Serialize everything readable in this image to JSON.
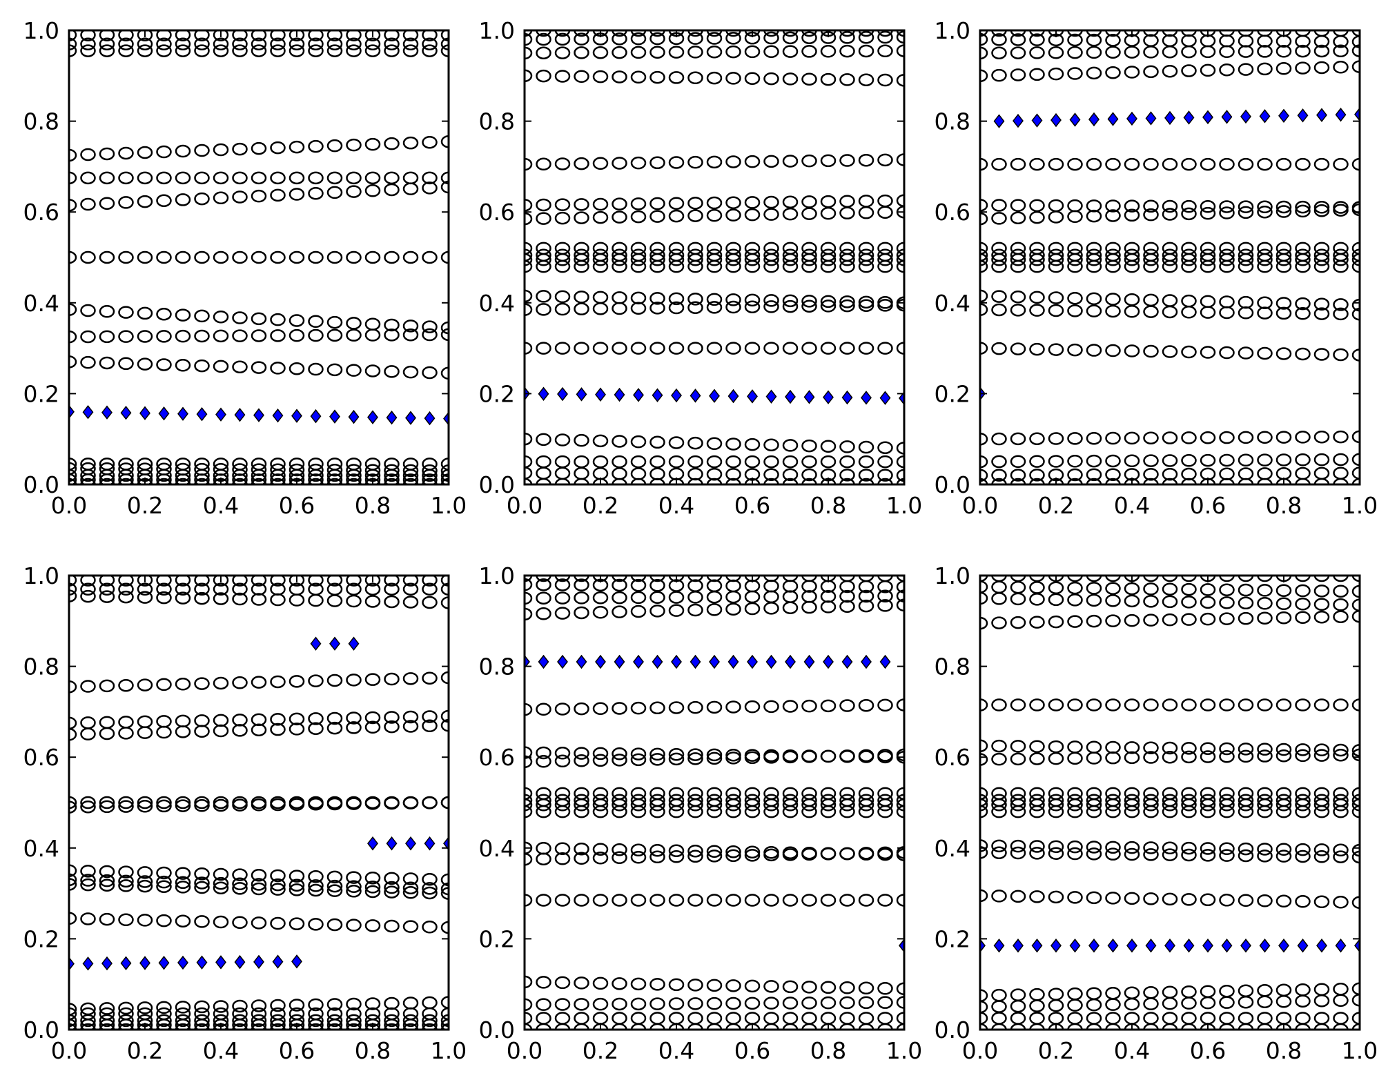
{
  "figure": {
    "colors": {
      "background": "#ffffff",
      "axes": "#000000",
      "ring": "#000000",
      "highlight": "#0000ff"
    },
    "marker_names": {
      "ring": "open-circle",
      "highlight": "blue-diamond"
    }
  },
  "chart_data": [
    {
      "type": "scatter",
      "xlim": [
        0.0,
        1.0
      ],
      "ylim": [
        0.0,
        1.0
      ],
      "xticks": [
        "0.0",
        "0.2",
        "0.4",
        "0.6",
        "0.8",
        "1.0"
      ],
      "yticks": [
        "0.0",
        "0.2",
        "0.4",
        "0.6",
        "0.8",
        "1.0"
      ],
      "x": [
        0.0,
        0.05,
        0.1,
        0.15,
        0.2,
        0.25,
        0.3,
        0.35,
        0.4,
        0.45,
        0.5,
        0.55,
        0.6,
        0.65,
        0.7,
        0.75,
        0.8,
        0.85,
        0.9,
        0.95,
        1.0
      ],
      "ring_tracks": [
        [
          0.0,
          0.0
        ],
        [
          0.01,
          0.01
        ],
        [
          0.02,
          0.02
        ],
        [
          0.035,
          0.03
        ],
        [
          0.045,
          0.045
        ],
        [
          0.955,
          0.955
        ],
        [
          0.97,
          0.97
        ],
        [
          0.99,
          0.99
        ],
        [
          0.725,
          0.755
        ],
        [
          0.675,
          0.675
        ],
        [
          0.615,
          0.655
        ],
        [
          0.5,
          0.5
        ],
        [
          0.385,
          0.345
        ],
        [
          0.325,
          0.33
        ],
        [
          0.27,
          0.245
        ]
      ],
      "highlight": [
        {
          "x_from": 0.0,
          "x_to": 1.0,
          "y_start": 0.16,
          "y_end": 0.145
        }
      ]
    },
    {
      "type": "scatter",
      "xlim": [
        0.0,
        1.0
      ],
      "ylim": [
        0.0,
        1.0
      ],
      "xticks": [
        "0.0",
        "0.2",
        "0.4",
        "0.6",
        "0.8",
        "1.0"
      ],
      "yticks": [
        "0.0",
        "0.2",
        "0.4",
        "0.6",
        "0.8",
        "1.0"
      ],
      "x": [
        0.0,
        0.05,
        0.1,
        0.15,
        0.2,
        0.25,
        0.3,
        0.35,
        0.4,
        0.45,
        0.5,
        0.55,
        0.6,
        0.65,
        0.7,
        0.75,
        0.8,
        0.85,
        0.9,
        0.95,
        1.0
      ],
      "ring_tracks": [
        [
          0.0,
          0.0
        ],
        [
          0.025,
          0.02
        ],
        [
          0.05,
          0.05
        ],
        [
          0.1,
          0.08
        ],
        [
          0.3,
          0.3
        ],
        [
          0.385,
          0.395
        ],
        [
          0.415,
          0.4
        ],
        [
          0.48,
          0.48
        ],
        [
          0.495,
          0.495
        ],
        [
          0.505,
          0.505
        ],
        [
          0.52,
          0.52
        ],
        [
          0.585,
          0.6
        ],
        [
          0.615,
          0.625
        ],
        [
          0.705,
          0.715
        ],
        [
          0.9,
          0.89
        ],
        [
          0.95,
          0.955
        ],
        [
          0.98,
          0.985
        ],
        [
          1.0,
          1.0
        ]
      ],
      "highlight": [
        {
          "x_from": 0.0,
          "x_to": 1.0,
          "y_start": 0.2,
          "y_end": 0.19
        }
      ]
    },
    {
      "type": "scatter",
      "xlim": [
        0.0,
        1.0
      ],
      "ylim": [
        0.0,
        1.0
      ],
      "xticks": [
        "0.0",
        "0.2",
        "0.4",
        "0.6",
        "0.8",
        "1.0"
      ],
      "yticks": [
        "0.0",
        "0.2",
        "0.4",
        "0.6",
        "0.8",
        "1.0"
      ],
      "x": [
        0.0,
        0.05,
        0.1,
        0.15,
        0.2,
        0.25,
        0.3,
        0.35,
        0.4,
        0.45,
        0.5,
        0.55,
        0.6,
        0.65,
        0.7,
        0.75,
        0.8,
        0.85,
        0.9,
        0.95,
        1.0
      ],
      "ring_tracks": [
        [
          0.0,
          0.0
        ],
        [
          0.02,
          0.025
        ],
        [
          0.05,
          0.055
        ],
        [
          0.1,
          0.105
        ],
        [
          0.3,
          0.285
        ],
        [
          0.385,
          0.375
        ],
        [
          0.415,
          0.395
        ],
        [
          0.48,
          0.48
        ],
        [
          0.495,
          0.495
        ],
        [
          0.505,
          0.505
        ],
        [
          0.52,
          0.52
        ],
        [
          0.585,
          0.605
        ],
        [
          0.615,
          0.61
        ],
        [
          0.705,
          0.705
        ],
        [
          0.9,
          0.92
        ],
        [
          0.95,
          0.955
        ],
        [
          0.98,
          0.975
        ],
        [
          1.0,
          1.0
        ]
      ],
      "highlight": [
        {
          "x_from": 0.0,
          "x_to": 0.0,
          "y_start": 0.2,
          "y_end": 0.2
        },
        {
          "x_from": 0.05,
          "x_to": 1.0,
          "y_start": 0.8,
          "y_end": 0.815
        }
      ]
    },
    {
      "type": "scatter",
      "xlim": [
        0.0,
        1.0
      ],
      "ylim": [
        0.0,
        1.0
      ],
      "xticks": [
        "0.0",
        "0.2",
        "0.4",
        "0.6",
        "0.8",
        "1.0"
      ],
      "yticks": [
        "0.0",
        "0.2",
        "0.4",
        "0.6",
        "0.8",
        "1.0"
      ],
      "x": [
        0.0,
        0.05,
        0.1,
        0.15,
        0.2,
        0.25,
        0.3,
        0.35,
        0.4,
        0.45,
        0.5,
        0.55,
        0.6,
        0.65,
        0.7,
        0.75,
        0.8,
        0.85,
        0.9,
        0.95,
        1.0
      ],
      "ring_tracks": [
        [
          0.0,
          0.0
        ],
        [
          0.01,
          0.01
        ],
        [
          0.02,
          0.02
        ],
        [
          0.035,
          0.035
        ],
        [
          0.045,
          0.06
        ],
        [
          0.955,
          0.94
        ],
        [
          0.97,
          0.97
        ],
        [
          0.99,
          0.99
        ],
        [
          0.755,
          0.775
        ],
        [
          0.675,
          0.69
        ],
        [
          0.65,
          0.67
        ],
        [
          0.5,
          0.5
        ],
        [
          0.49,
          0.5
        ],
        [
          0.35,
          0.33
        ],
        [
          0.33,
          0.31
        ],
        [
          0.32,
          0.3
        ],
        [
          0.245,
          0.225
        ]
      ],
      "highlight": [
        {
          "x_from": 0.0,
          "x_to": 0.6,
          "y_start": 0.145,
          "y_end": 0.15
        },
        {
          "x_from": 0.65,
          "x_to": 0.75,
          "y_start": 0.85,
          "y_end": 0.85
        },
        {
          "x_from": 0.8,
          "x_to": 1.0,
          "y_start": 0.41,
          "y_end": 0.41
        }
      ]
    },
    {
      "type": "scatter",
      "xlim": [
        0.0,
        1.0
      ],
      "ylim": [
        0.0,
        1.0
      ],
      "xticks": [
        "0.0",
        "0.2",
        "0.4",
        "0.6",
        "0.8",
        "1.0"
      ],
      "yticks": [
        "0.0",
        "0.2",
        "0.4",
        "0.6",
        "0.8",
        "1.0"
      ],
      "x": [
        0.0,
        0.05,
        0.1,
        0.15,
        0.2,
        0.25,
        0.3,
        0.35,
        0.4,
        0.45,
        0.5,
        0.55,
        0.6,
        0.65,
        0.7,
        0.75,
        0.8,
        0.85,
        0.9,
        0.95,
        1.0
      ],
      "ring_tracks": [
        [
          0.0,
          0.0
        ],
        [
          0.025,
          0.025
        ],
        [
          0.055,
          0.06
        ],
        [
          0.105,
          0.09
        ],
        [
          0.285,
          0.285
        ],
        [
          0.375,
          0.39
        ],
        [
          0.4,
          0.385
        ],
        [
          0.48,
          0.48
        ],
        [
          0.495,
          0.495
        ],
        [
          0.505,
          0.505
        ],
        [
          0.52,
          0.52
        ],
        [
          0.59,
          0.605
        ],
        [
          0.61,
          0.6
        ],
        [
          0.705,
          0.715
        ],
        [
          0.915,
          0.935
        ],
        [
          0.95,
          0.955
        ],
        [
          0.98,
          0.975
        ],
        [
          1.0,
          1.0
        ]
      ],
      "highlight": [
        {
          "x_from": 0.0,
          "x_to": 0.95,
          "y_start": 0.81,
          "y_end": 0.81
        },
        {
          "x_from": 1.0,
          "x_to": 1.0,
          "y_start": 0.185,
          "y_end": 0.185
        }
      ]
    },
    {
      "type": "scatter",
      "xlim": [
        0.0,
        1.0
      ],
      "ylim": [
        0.0,
        1.0
      ],
      "xticks": [
        "0.0",
        "0.2",
        "0.4",
        "0.6",
        "0.8",
        "1.0"
      ],
      "yticks": [
        "0.0",
        "0.2",
        "0.4",
        "0.6",
        "0.8",
        "1.0"
      ],
      "x": [
        0.0,
        0.05,
        0.1,
        0.15,
        0.2,
        0.25,
        0.3,
        0.35,
        0.4,
        0.45,
        0.5,
        0.55,
        0.6,
        0.65,
        0.7,
        0.75,
        0.8,
        0.85,
        0.9,
        0.95,
        1.0
      ],
      "ring_tracks": [
        [
          0.0,
          0.0
        ],
        [
          0.025,
          0.025
        ],
        [
          0.05,
          0.065
        ],
        [
          0.075,
          0.09
        ],
        [
          0.295,
          0.28
        ],
        [
          0.39,
          0.38
        ],
        [
          0.405,
          0.395
        ],
        [
          0.48,
          0.48
        ],
        [
          0.495,
          0.495
        ],
        [
          0.505,
          0.505
        ],
        [
          0.52,
          0.52
        ],
        [
          0.595,
          0.605
        ],
        [
          0.625,
          0.615
        ],
        [
          0.715,
          0.715
        ],
        [
          0.895,
          0.91
        ],
        [
          0.95,
          0.935
        ],
        [
          0.975,
          0.965
        ],
        [
          1.0,
          1.0
        ]
      ],
      "highlight": [
        {
          "x_from": 0.0,
          "x_to": 1.0,
          "y_start": 0.185,
          "y_end": 0.185
        }
      ]
    }
  ]
}
